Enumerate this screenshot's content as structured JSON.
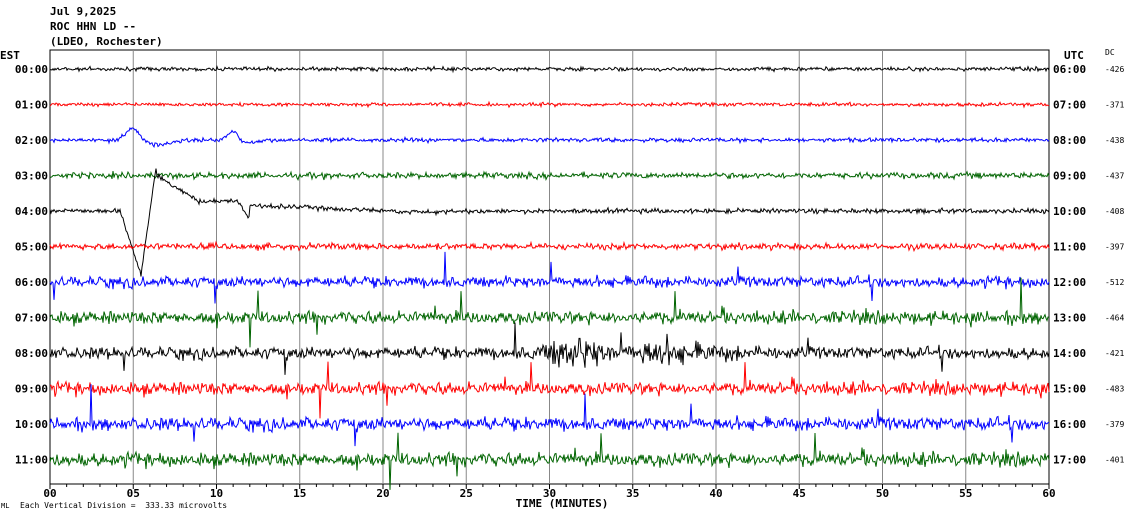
{
  "header": {
    "date": "Jul 9,2025",
    "station": "ROC HHN LD --",
    "network": "(LDEO, Rochester)"
  },
  "axes": {
    "left_label": "EST",
    "right_label": "UTC",
    "dc_label": "DC",
    "xlabel": "TIME (MINUTES)"
  },
  "footer": {
    "note": "Each Vertical Division =  333.33 microvolts",
    "logo_text": "ML"
  },
  "chart_data": {
    "type": "line",
    "title": "",
    "xlabel": "TIME (MINUTES)",
    "xlim": [
      0,
      60
    ],
    "x_ticks": [
      "00",
      "05",
      "10",
      "15",
      "20",
      "25",
      "30",
      "35",
      "40",
      "45",
      "50",
      "55",
      "60"
    ],
    "grid": true,
    "rows": [
      {
        "est": "00:00",
        "utc": "06:00",
        "dc": "-426",
        "color": "#000000",
        "noise": 0.18
      },
      {
        "est": "01:00",
        "utc": "07:00",
        "dc": "-371",
        "color": "#ff0000",
        "noise": 0.17
      },
      {
        "est": "02:00",
        "utc": "08:00",
        "dc": "-438",
        "color": "#0000ff",
        "noise": 0.2
      },
      {
        "est": "03:00",
        "utc": "09:00",
        "dc": "-437",
        "color": "#006400",
        "noise": 0.28
      },
      {
        "est": "04:00",
        "utc": "10:00",
        "dc": "-408",
        "color": "#000000",
        "noise": 0.22
      },
      {
        "est": "05:00",
        "utc": "11:00",
        "dc": "-397",
        "color": "#ff0000",
        "noise": 0.3
      },
      {
        "est": "06:00",
        "utc": "12:00",
        "dc": "-512",
        "color": "#0000ff",
        "noise": 0.5
      },
      {
        "est": "07:00",
        "utc": "13:00",
        "dc": "-464",
        "color": "#006400",
        "noise": 0.6
      },
      {
        "est": "08:00",
        "utc": "14:00",
        "dc": "-421",
        "color": "#000000",
        "noise": 0.55
      },
      {
        "est": "09:00",
        "utc": "15:00",
        "dc": "-483",
        "color": "#ff0000",
        "noise": 0.6
      },
      {
        "est": "10:00",
        "utc": "16:00",
        "dc": "-379",
        "color": "#0000ff",
        "noise": 0.6
      },
      {
        "est": "11:00",
        "utc": "17:00",
        "dc": "-401",
        "color": "#006400",
        "noise": 0.65
      }
    ]
  }
}
